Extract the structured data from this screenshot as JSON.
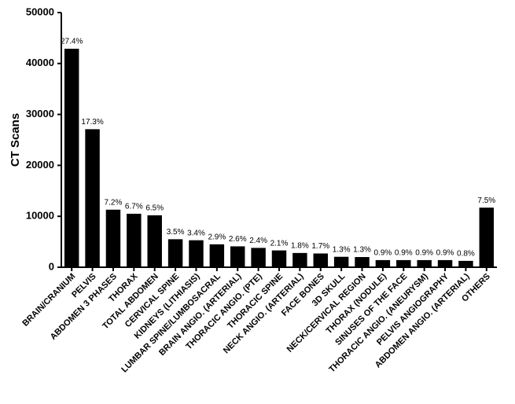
{
  "chart_data": {
    "type": "bar",
    "ylabel": "CT Scans",
    "categories": [
      "BRAIN/CRANIUM",
      "PELVIS",
      "ABDOMEN 3 PHASES",
      "THORAX",
      "TOTAL ABDOMEN",
      "CERVICAL SPINE",
      "KIDNEYS (LITHIASIS)",
      "LUMBAR SPINE/LUMBOSACRAL",
      "BRAIN ANGIO. (ARTERIAL)",
      "THORACIC ANGIO. (PTE)",
      "THORACIC SPINE",
      "NECK ANGIO. (ARTERIAL)",
      "FACE BONES",
      "3D SKULL",
      "NECK/CERVICAL REGION",
      "THORAX (NODULE)",
      "SINUSES OF THE FACE",
      "THORACIC ANGIO. (ANEURYSM)",
      "PELVIS ANGIOGRAPHY",
      "ABDOMEN ANGIO. (ARTERIAL)",
      "OTHERS"
    ],
    "values": [
      42900,
      27100,
      11300,
      10500,
      10200,
      5500,
      5300,
      4500,
      4100,
      3800,
      3300,
      2800,
      2700,
      2050,
      2000,
      1400,
      1400,
      1400,
      1400,
      1250,
      11700
    ],
    "value_labels": [
      "27.4%",
      "17.3%",
      "7.2%",
      "6.7%",
      "6.5%",
      "3.5%",
      "3.4%",
      "2.9%",
      "2.6%",
      "2.4%",
      "2.1%",
      "1.8%",
      "1.7%",
      "1.3%",
      "1.3%",
      "0.9%",
      "0.9%",
      "0.9%",
      "0.9%",
      "0.8%",
      "7.5%"
    ],
    "color": "#000000",
    "ylim": [
      0,
      50000
    ],
    "yticks": [
      0,
      10000,
      20000,
      30000,
      40000,
      50000
    ],
    "grid": false
  }
}
